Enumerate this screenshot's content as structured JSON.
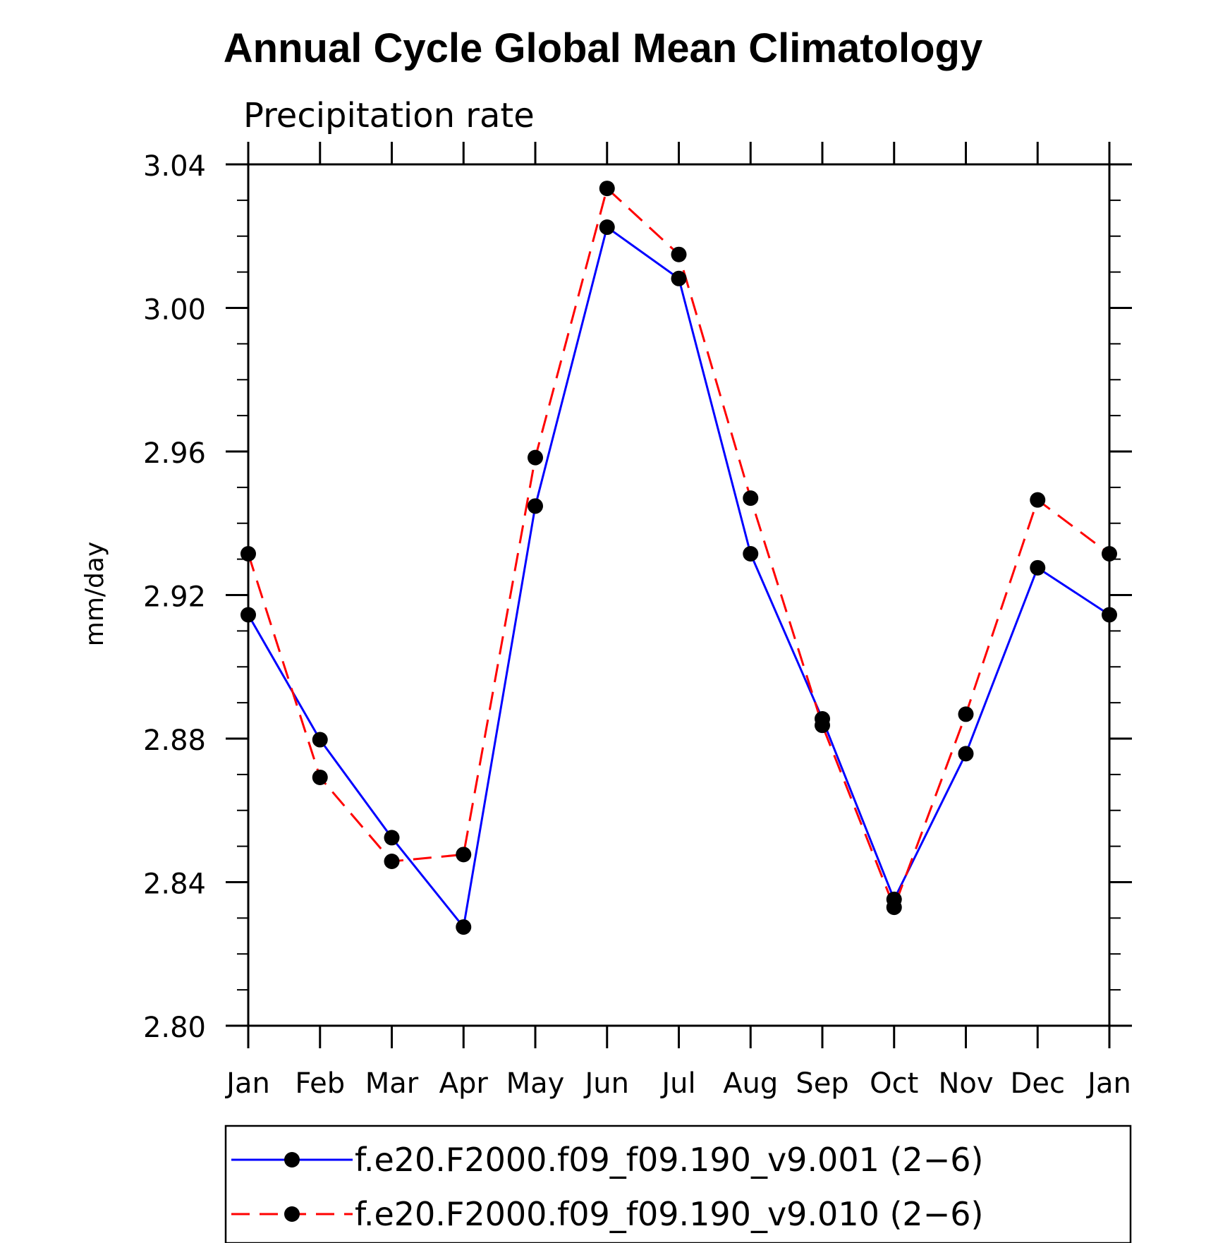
{
  "chart_data": {
    "type": "line",
    "title": "Annual Cycle Global Mean Climatology",
    "subtitle": "Precipitation rate",
    "xlabel": "",
    "ylabel": "mm/day",
    "categories": [
      "Jan",
      "Feb",
      "Mar",
      "Apr",
      "May",
      "Jun",
      "Jul",
      "Aug",
      "Sep",
      "Oct",
      "Nov",
      "Dec",
      "Jan"
    ],
    "ylim": [
      2.8,
      3.04
    ],
    "yticks": [
      "2.80",
      "2.84",
      "2.88",
      "2.92",
      "2.96",
      "3.00",
      "3.04"
    ],
    "series": [
      {
        "name": "f.e20.F2000.f09_f09.190_v9.001 (2−6)",
        "color": "#0000ff",
        "dash": "solid",
        "marker": "dot",
        "values": [
          2.9145,
          2.8797,
          2.8524,
          2.8275,
          2.9448,
          3.0225,
          3.0082,
          2.9315,
          2.8855,
          2.8352,
          2.8758,
          2.9276,
          2.9145
        ]
      },
      {
        "name": "f.e20.F2000.f09_f09.190_v9.010 (2−6)",
        "color": "#ff0000",
        "dash": "dashed",
        "marker": "dot",
        "values": [
          2.9315,
          2.8692,
          2.8458,
          2.8477,
          2.9583,
          3.0333,
          3.0149,
          2.947,
          2.8837,
          2.833,
          2.8868,
          2.9465,
          2.9315
        ]
      }
    ],
    "legend_position": "bottom"
  }
}
